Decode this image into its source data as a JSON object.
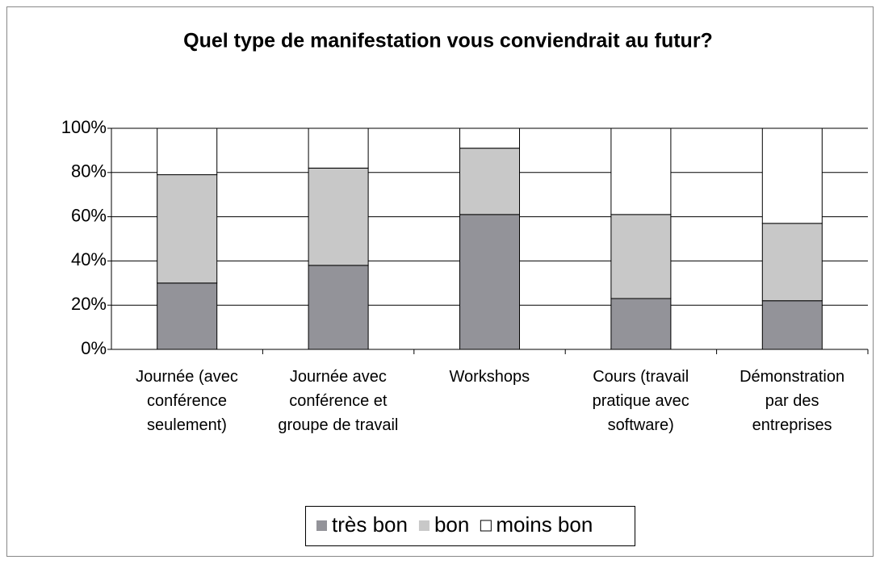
{
  "chart_data": {
    "type": "stacked_bar",
    "title": "Quel type de manifestation vous conviendrait au futur?",
    "categories": [
      "Journée (avec\nconférence\nseulement)",
      "Journée avec\nconférence et\ngroupe de travail",
      "Workshops",
      "Cours (travail\npratique avec\nsoftware)",
      "Démonstration\npar des\nentreprises"
    ],
    "series": [
      {
        "name": "très bon",
        "color": "#939399",
        "values": [
          30,
          38,
          61,
          23,
          22
        ]
      },
      {
        "name": "bon",
        "color": "#c8c8c8",
        "values": [
          49,
          44,
          30,
          38,
          35
        ]
      },
      {
        "name": "moins bon",
        "color": "#ffffff",
        "values": [
          21,
          18,
          9,
          39,
          43
        ]
      }
    ],
    "ylim": [
      0,
      100
    ],
    "yticks": [
      {
        "value": 0,
        "label": "0%"
      },
      {
        "value": 20,
        "label": "20%"
      },
      {
        "value": 40,
        "label": "40%"
      },
      {
        "value": 60,
        "label": "60%"
      },
      {
        "value": 80,
        "label": "80%"
      },
      {
        "value": 100,
        "label": "100%"
      }
    ],
    "grid": true,
    "legend": "bottom"
  }
}
